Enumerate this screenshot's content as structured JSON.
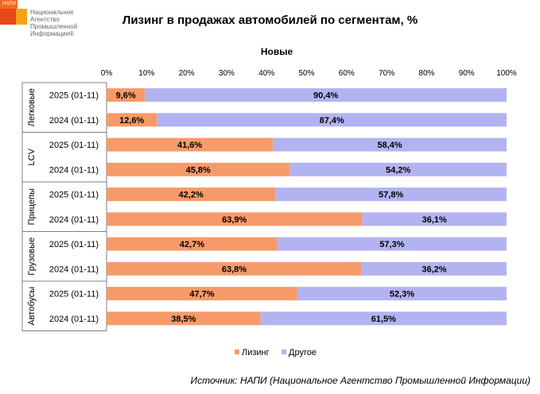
{
  "logo": {
    "tag": "НАПИ",
    "text": "Национальное\nАгентство\nПромышленной\nИнформации®"
  },
  "chart_data": {
    "type": "bar",
    "orientation": "horizontal",
    "stacked": "percent",
    "title": "Лизинг в продажах автомобилей по сегментам, %",
    "subtitle": "Новые",
    "xlim": [
      0,
      100
    ],
    "x_ticks": [
      "0%",
      "10%",
      "20%",
      "30%",
      "40%",
      "50%",
      "60%",
      "70%",
      "80%",
      "90%",
      "100%"
    ],
    "groups": [
      {
        "name": "Легковые",
        "rows": [
          {
            "label": "2025 (01-11)",
            "leasing": 9.6,
            "other": 90.4,
            "leasing_label": "9,6%",
            "other_label": "90,4%"
          },
          {
            "label": "2024 (01-11)",
            "leasing": 12.6,
            "other": 87.4,
            "leasing_label": "12,6%",
            "other_label": "87,4%"
          }
        ]
      },
      {
        "name": "LCV",
        "rows": [
          {
            "label": "2025 (01-11)",
            "leasing": 41.6,
            "other": 58.4,
            "leasing_label": "41,6%",
            "other_label": "58,4%"
          },
          {
            "label": "2024 (01-11)",
            "leasing": 45.8,
            "other": 54.2,
            "leasing_label": "45,8%",
            "other_label": "54,2%"
          }
        ]
      },
      {
        "name": "Прицепы",
        "rows": [
          {
            "label": "2025 (01-11)",
            "leasing": 42.2,
            "other": 57.8,
            "leasing_label": "42,2%",
            "other_label": "57,8%"
          },
          {
            "label": "2024 (01-11)",
            "leasing": 63.9,
            "other": 36.1,
            "leasing_label": "63,9%",
            "other_label": "36,1%"
          }
        ]
      },
      {
        "name": "Грузовые",
        "rows": [
          {
            "label": "2025 (01-11)",
            "leasing": 42.7,
            "other": 57.3,
            "leasing_label": "42,7%",
            "other_label": "57,3%"
          },
          {
            "label": "2024 (01-11)",
            "leasing": 63.8,
            "other": 36.2,
            "leasing_label": "63,8%",
            "other_label": "36,2%"
          }
        ]
      },
      {
        "name": "Автобусы",
        "rows": [
          {
            "label": "2025 (01-11)",
            "leasing": 47.7,
            "other": 52.3,
            "leasing_label": "47,7%",
            "other_label": "52,3%"
          },
          {
            "label": "2024 (01-11)",
            "leasing": 38.5,
            "other": 61.5,
            "leasing_label": "38,5%",
            "other_label": "61,5%"
          }
        ]
      }
    ],
    "legend": [
      {
        "name": "Лизинг",
        "color": "#F79A6A"
      },
      {
        "name": "Другое",
        "color": "#B3B3F2"
      }
    ],
    "legend_position": "bottom"
  },
  "source": "Источник: НАПИ (Национальное Агентство Промышленной Информации)"
}
